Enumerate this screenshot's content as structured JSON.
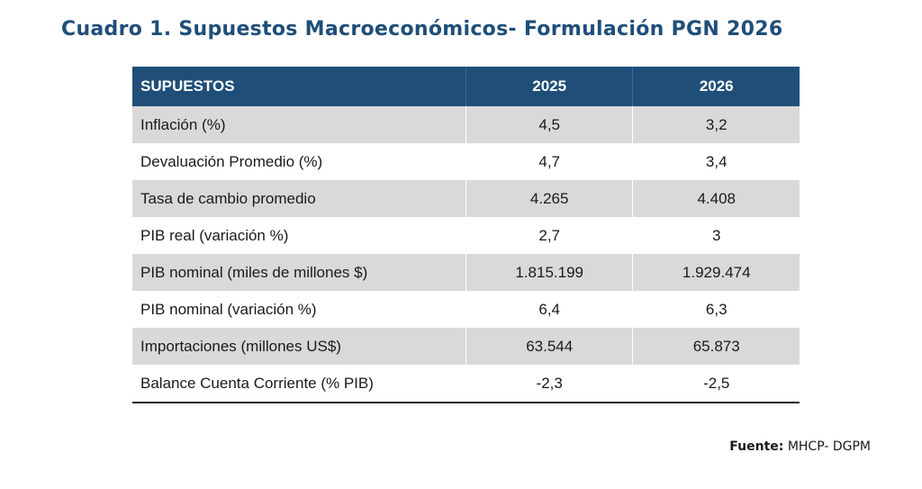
{
  "title": "Cuadro 1. Supuestos Macroeconómicos- Formulación PGN 2026",
  "table": {
    "headers": [
      "SUPUESTOS",
      "2025",
      "2026"
    ],
    "rows": [
      {
        "label": "Inflación (%)",
        "v2025": "4,5",
        "v2026": "3,2"
      },
      {
        "label": "Devaluación Promedio (%)",
        "v2025": "4,7",
        "v2026": "3,4"
      },
      {
        "label": "Tasa de cambio promedio",
        "v2025": "4.265",
        "v2026": "4.408"
      },
      {
        "label": "PIB real (variación %)",
        "v2025": "2,7",
        "v2026": "3"
      },
      {
        "label": "PIB nominal (miles de millones $)",
        "v2025": "1.815.199",
        "v2026": "1.929.474"
      },
      {
        "label": "PIB nominal (variación %)",
        "v2025": "6,4",
        "v2026": "6,3"
      },
      {
        "label": "Importaciones (millones US$)",
        "v2025": "63.544",
        "v2026": "65.873"
      },
      {
        "label": "Balance Cuenta Corriente (% PIB)",
        "v2025": "-2,3",
        "v2026": "-2,5"
      }
    ]
  },
  "source": {
    "label": "Fuente:",
    "text": "MHCP- DGPM"
  },
  "colors": {
    "header_bg": "#1f4e79",
    "title": "#1f4e79",
    "shaded_row": "#d9d9d9"
  }
}
